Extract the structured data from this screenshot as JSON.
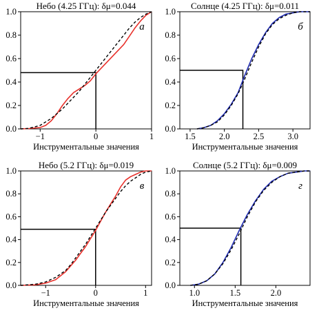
{
  "chart_data": [
    {
      "type": "line",
      "title": "Небо (4.25 ГГц): δμ=0.044",
      "xlabel": "Инструментальные значения",
      "ylabel": "",
      "annotation": "а",
      "xlim": [
        -1.35,
        1.0
      ],
      "ylim": [
        0.0,
        1.0
      ],
      "xticks": [
        -1,
        0,
        1
      ],
      "xtick_labels": [
        "−1",
        "0",
        "1"
      ],
      "yticks": [
        0.0,
        0.2,
        0.4,
        0.6,
        0.8,
        1.0
      ],
      "ytick_labels": [
        "0.0",
        "0.2",
        "0.4",
        "0.6",
        "0.8",
        "1.0"
      ],
      "grid": false,
      "series": [
        {
          "style": "solid",
          "color": "#e8302a",
          "points": [
            [
              -1.35,
              0.0
            ],
            [
              -1.2,
              0.003
            ],
            [
              -1.0,
              0.012
            ],
            [
              -0.9,
              0.03
            ],
            [
              -0.8,
              0.07
            ],
            [
              -0.7,
              0.13
            ],
            [
              -0.6,
              0.2
            ],
            [
              -0.5,
              0.26
            ],
            [
              -0.4,
              0.31
            ],
            [
              -0.3,
              0.34
            ],
            [
              -0.2,
              0.37
            ],
            [
              -0.1,
              0.41
            ],
            [
              0.0,
              0.47
            ],
            [
              0.1,
              0.52
            ],
            [
              0.2,
              0.57
            ],
            [
              0.3,
              0.62
            ],
            [
              0.4,
              0.67
            ],
            [
              0.5,
              0.72
            ],
            [
              0.6,
              0.79
            ],
            [
              0.7,
              0.86
            ],
            [
              0.8,
              0.92
            ],
            [
              0.9,
              0.97
            ],
            [
              1.0,
              1.0
            ]
          ]
        },
        {
          "style": "dashed",
          "color": "#000000",
          "points": [
            [
              -1.35,
              0.0
            ],
            [
              -1.2,
              0.005
            ],
            [
              -1.0,
              0.03
            ],
            [
              -0.9,
              0.06
            ],
            [
              -0.8,
              0.09
            ],
            [
              -0.7,
              0.13
            ],
            [
              -0.6,
              0.17
            ],
            [
              -0.5,
              0.22
            ],
            [
              -0.4,
              0.27
            ],
            [
              -0.3,
              0.32
            ],
            [
              -0.2,
              0.38
            ],
            [
              -0.1,
              0.44
            ],
            [
              0.0,
              0.5
            ],
            [
              0.1,
              0.56
            ],
            [
              0.2,
              0.62
            ],
            [
              0.3,
              0.68
            ],
            [
              0.4,
              0.74
            ],
            [
              0.5,
              0.8
            ],
            [
              0.6,
              0.86
            ],
            [
              0.7,
              0.91
            ],
            [
              0.8,
              0.95
            ],
            [
              0.9,
              0.98
            ],
            [
              1.0,
              1.0
            ]
          ]
        }
      ],
      "reference_point": {
        "x": 0.0,
        "y": 0.48
      }
    },
    {
      "type": "line",
      "title": "Солнце (4.25 ГГц): δμ=0.011",
      "xlabel": "Инструментальные значения",
      "ylabel": "",
      "annotation": "б",
      "xlim": [
        1.35,
        3.25
      ],
      "ylim": [
        0.0,
        1.0
      ],
      "xticks": [
        1.5,
        2.0,
        2.5,
        3.0
      ],
      "xtick_labels": [
        "1.5",
        "2.0",
        "2.5",
        "3.0"
      ],
      "yticks": [
        0.0,
        0.2,
        0.4,
        0.6,
        0.8,
        1.0
      ],
      "ytick_labels": [
        "0.0",
        "0.2",
        "0.4",
        "0.6",
        "0.8",
        "1.0"
      ],
      "grid": false,
      "series": [
        {
          "style": "solid",
          "color": "#1f2bb0",
          "points": [
            [
              1.6,
              0.0
            ],
            [
              1.7,
              0.01
            ],
            [
              1.8,
              0.03
            ],
            [
              1.9,
              0.07
            ],
            [
              2.0,
              0.13
            ],
            [
              2.1,
              0.21
            ],
            [
              2.2,
              0.31
            ],
            [
              2.3,
              0.46
            ],
            [
              2.4,
              0.6
            ],
            [
              2.5,
              0.72
            ],
            [
              2.6,
              0.82
            ],
            [
              2.7,
              0.9
            ],
            [
              2.8,
              0.95
            ],
            [
              2.9,
              0.98
            ],
            [
              3.0,
              0.99
            ],
            [
              3.1,
              1.0
            ],
            [
              3.25,
              1.0
            ]
          ]
        },
        {
          "style": "dashed",
          "color": "#000000",
          "points": [
            [
              1.6,
              0.0
            ],
            [
              1.7,
              0.01
            ],
            [
              1.8,
              0.03
            ],
            [
              1.9,
              0.06
            ],
            [
              2.0,
              0.12
            ],
            [
              2.1,
              0.2
            ],
            [
              2.2,
              0.3
            ],
            [
              2.3,
              0.43
            ],
            [
              2.4,
              0.57
            ],
            [
              2.5,
              0.7
            ],
            [
              2.6,
              0.81
            ],
            [
              2.7,
              0.89
            ],
            [
              2.8,
              0.94
            ],
            [
              2.9,
              0.97
            ],
            [
              3.0,
              0.99
            ],
            [
              3.1,
              1.0
            ],
            [
              3.25,
              1.0
            ]
          ]
        }
      ],
      "reference_point": {
        "x": 2.27,
        "y": 0.5
      }
    },
    {
      "type": "line",
      "title": "Небо (5.2 ГГц): δμ=0.019",
      "xlabel": "Инструментальные значения",
      "ylabel": "",
      "annotation": "в",
      "xlim": [
        -1.5,
        1.12
      ],
      "ylim": [
        0.0,
        1.0
      ],
      "xticks": [
        -1,
        0,
        1
      ],
      "xtick_labels": [
        "−1",
        "0",
        "1"
      ],
      "yticks": [
        0.0,
        0.2,
        0.4,
        0.6,
        0.8,
        1.0
      ],
      "ytick_labels": [
        "0.0",
        "0.2",
        "0.4",
        "0.6",
        "0.8",
        "1.0"
      ],
      "grid": false,
      "series": [
        {
          "style": "solid",
          "color": "#e8302a",
          "points": [
            [
              -1.5,
              0.0
            ],
            [
              -1.2,
              0.005
            ],
            [
              -1.0,
              0.02
            ],
            [
              -0.8,
              0.05
            ],
            [
              -0.6,
              0.12
            ],
            [
              -0.5,
              0.17
            ],
            [
              -0.4,
              0.22
            ],
            [
              -0.3,
              0.28
            ],
            [
              -0.2,
              0.34
            ],
            [
              -0.1,
              0.41
            ],
            [
              0.0,
              0.48
            ],
            [
              0.1,
              0.56
            ],
            [
              0.2,
              0.64
            ],
            [
              0.3,
              0.71
            ],
            [
              0.4,
              0.78
            ],
            [
              0.5,
              0.86
            ],
            [
              0.6,
              0.92
            ],
            [
              0.7,
              0.95
            ],
            [
              0.8,
              0.97
            ],
            [
              0.9,
              0.99
            ],
            [
              1.0,
              1.0
            ],
            [
              1.12,
              1.0
            ]
          ]
        },
        {
          "style": "dashed",
          "color": "#000000",
          "points": [
            [
              -1.5,
              0.0
            ],
            [
              -1.2,
              0.01
            ],
            [
              -1.0,
              0.03
            ],
            [
              -0.8,
              0.07
            ],
            [
              -0.6,
              0.13
            ],
            [
              -0.5,
              0.18
            ],
            [
              -0.4,
              0.24
            ],
            [
              -0.3,
              0.3
            ],
            [
              -0.2,
              0.36
            ],
            [
              -0.1,
              0.43
            ],
            [
              0.0,
              0.5
            ],
            [
              0.1,
              0.57
            ],
            [
              0.2,
              0.64
            ],
            [
              0.3,
              0.7
            ],
            [
              0.4,
              0.76
            ],
            [
              0.5,
              0.82
            ],
            [
              0.6,
              0.87
            ],
            [
              0.7,
              0.91
            ],
            [
              0.8,
              0.94
            ],
            [
              0.9,
              0.97
            ],
            [
              1.0,
              0.99
            ],
            [
              1.12,
              1.0
            ]
          ]
        }
      ],
      "reference_point": {
        "x": 0.0,
        "y": 0.49
      }
    },
    {
      "type": "line",
      "title": "Солнце (5.2 ГГц): δμ=0.009",
      "xlabel": "Инструментальные значения",
      "ylabel": "",
      "annotation": "г",
      "xlim": [
        0.82,
        2.42
      ],
      "ylim": [
        0.0,
        1.0
      ],
      "xticks": [
        1.0,
        1.5,
        2.0
      ],
      "xtick_labels": [
        "1.0",
        "1.5",
        "2.0"
      ],
      "yticks": [
        0.0,
        0.2,
        0.4,
        0.6,
        0.8,
        1.0
      ],
      "ytick_labels": [
        "0.0",
        "0.2",
        "0.4",
        "0.6",
        "0.8",
        "1.0"
      ],
      "grid": false,
      "series": [
        {
          "style": "solid",
          "color": "#1f2bb0",
          "points": [
            [
              0.95,
              0.0
            ],
            [
              1.05,
              0.01
            ],
            [
              1.15,
              0.04
            ],
            [
              1.25,
              0.1
            ],
            [
              1.35,
              0.2
            ],
            [
              1.45,
              0.33
            ],
            [
              1.55,
              0.48
            ],
            [
              1.65,
              0.62
            ],
            [
              1.75,
              0.74
            ],
            [
              1.85,
              0.84
            ],
            [
              1.95,
              0.91
            ],
            [
              2.05,
              0.95
            ],
            [
              2.15,
              0.98
            ],
            [
              2.25,
              0.99
            ],
            [
              2.35,
              1.0
            ],
            [
              2.42,
              1.0
            ]
          ]
        },
        {
          "style": "dashed",
          "color": "#000000",
          "points": [
            [
              0.95,
              0.0
            ],
            [
              1.05,
              0.01
            ],
            [
              1.15,
              0.04
            ],
            [
              1.25,
              0.1
            ],
            [
              1.35,
              0.19
            ],
            [
              1.45,
              0.31
            ],
            [
              1.55,
              0.45
            ],
            [
              1.65,
              0.6
            ],
            [
              1.75,
              0.73
            ],
            [
              1.85,
              0.83
            ],
            [
              1.95,
              0.9
            ],
            [
              2.05,
              0.95
            ],
            [
              2.15,
              0.98
            ],
            [
              2.25,
              0.99
            ],
            [
              2.35,
              1.0
            ],
            [
              2.42,
              1.0
            ]
          ]
        }
      ],
      "reference_point": {
        "x": 1.57,
        "y": 0.5
      }
    }
  ]
}
